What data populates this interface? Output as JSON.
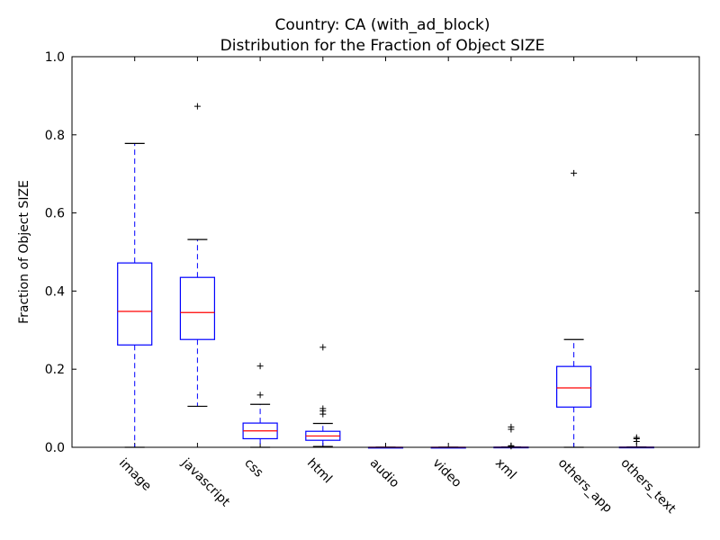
{
  "chart_data": {
    "type": "box",
    "title": "Country: CA  (with_ad_block)",
    "subtitle": "Distribution for the Fraction of Object SIZE",
    "xlabel": "",
    "ylabel": "Fraction of Object SIZE",
    "ylim": [
      0.0,
      1.0
    ],
    "yticks": [
      "0.0",
      "0.2",
      "0.4",
      "0.6",
      "0.8",
      "1.0"
    ],
    "categories": [
      "image",
      "javascript",
      "css",
      "html",
      "audio",
      "video",
      "xml",
      "others_app",
      "others_text"
    ],
    "boxes": [
      {
        "category": "image",
        "whisker_low": 0.0,
        "q1": 0.262,
        "median": 0.348,
        "q3": 0.472,
        "whisker_high": 0.778,
        "outliers": []
      },
      {
        "category": "javascript",
        "whisker_low": 0.105,
        "q1": 0.276,
        "median": 0.345,
        "q3": 0.435,
        "whisker_high": 0.532,
        "outliers": [
          0.873
        ]
      },
      {
        "category": "css",
        "whisker_low": 0.0,
        "q1": 0.022,
        "median": 0.042,
        "q3": 0.062,
        "whisker_high": 0.11,
        "outliers": [
          0.134,
          0.208
        ]
      },
      {
        "category": "html",
        "whisker_low": 0.002,
        "q1": 0.018,
        "median": 0.029,
        "q3": 0.041,
        "whisker_high": 0.061,
        "outliers": [
          0.085,
          0.093,
          0.099,
          0.256
        ]
      },
      {
        "category": "audio",
        "whisker_low": 0.0,
        "q1": 0.0,
        "median": 0.0,
        "q3": 0.0,
        "whisker_high": 0.0,
        "outliers": []
      },
      {
        "category": "video",
        "whisker_low": 0.0,
        "q1": 0.0,
        "median": 0.0,
        "q3": 0.0,
        "whisker_high": 0.0,
        "outliers": []
      },
      {
        "category": "xml",
        "whisker_low": 0.0,
        "q1": 0.0,
        "median": 0.0,
        "q3": 0.0005,
        "whisker_high": 0.001,
        "outliers": [
          0.003,
          0.004,
          0.046,
          0.052
        ]
      },
      {
        "category": "others_app",
        "whisker_low": 0.0,
        "q1": 0.103,
        "median": 0.152,
        "q3": 0.207,
        "whisker_high": 0.276,
        "outliers": [
          0.702
        ]
      },
      {
        "category": "others_text",
        "whisker_low": 0.0,
        "q1": 0.0,
        "median": 0.0,
        "q3": 0.0005,
        "whisker_high": 0.001,
        "outliers": [
          0.015,
          0.022,
          0.025
        ]
      }
    ],
    "grid": false,
    "colors": {
      "box": "#0000ff",
      "median": "#ff0000",
      "whisker": "#0000ff",
      "cap": "#000000",
      "outlier": "#000000"
    }
  }
}
